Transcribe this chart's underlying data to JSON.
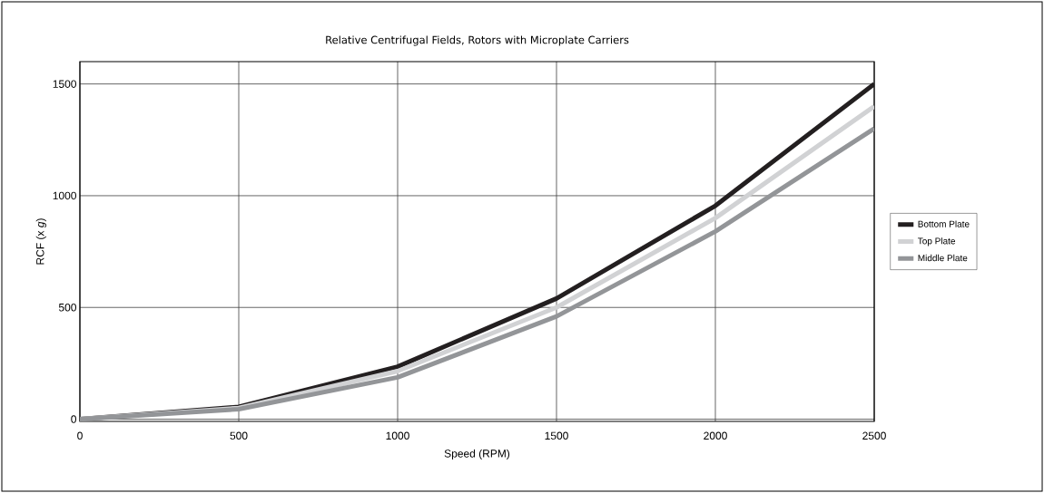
{
  "chart_data": {
    "type": "line",
    "title": "Relative Centrifugal Fields, Rotors with Microplate Carriers",
    "xlabel": "Speed (RPM)",
    "ylabel": "RCF (x *g*)",
    "x": [
      0,
      500,
      1000,
      1500,
      2000,
      2500
    ],
    "series": [
      {
        "name": "Bottom Plate",
        "color": "#231f20",
        "values": [
          0,
          55,
          235,
          540,
          955,
          1500
        ]
      },
      {
        "name": "Top Plate",
        "color": "#d1d2d4",
        "values": [
          0,
          50,
          215,
          500,
          900,
          1400
        ]
      },
      {
        "name": "Middle Plate",
        "color": "#939598",
        "values": [
          0,
          45,
          187,
          460,
          840,
          1300
        ]
      }
    ],
    "xlim": [
      0,
      2500
    ],
    "xticks": [
      0,
      500,
      1000,
      1500,
      2000,
      2500
    ],
    "ylim": [
      -10,
      1600
    ],
    "yticks": [
      0,
      500,
      1000,
      1500
    ],
    "grid": true,
    "legend": "right",
    "line_style": "solid"
  }
}
